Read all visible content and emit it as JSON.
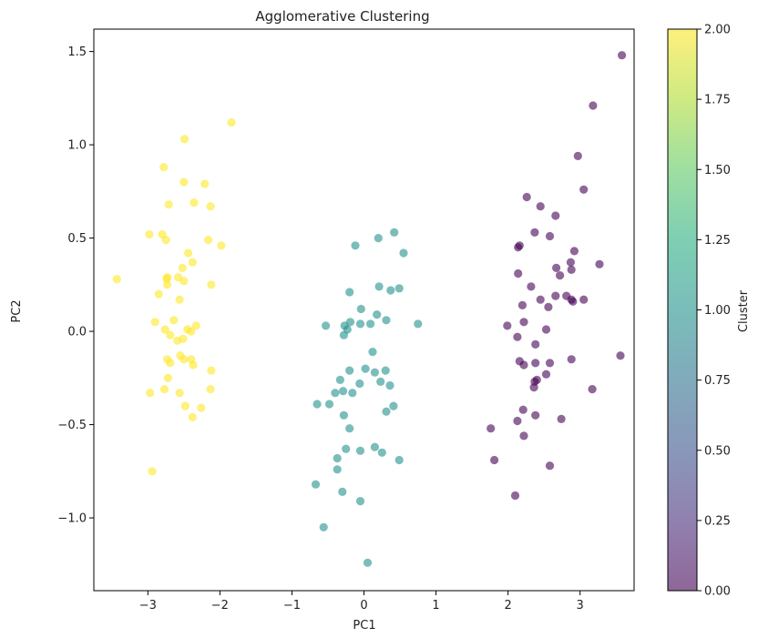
{
  "chart_data": {
    "type": "scatter",
    "title": "Agglomerative Clustering",
    "xlabel": "PC1",
    "ylabel": "PC2",
    "xlim": [
      -3.75,
      3.75
    ],
    "ylim": [
      -1.39,
      1.62
    ],
    "xticks": [
      -3,
      -2,
      -1,
      0,
      1,
      2,
      3
    ],
    "yticks": [
      -1.0,
      -0.5,
      0.0,
      0.5,
      1.0,
      1.5
    ],
    "xtick_labels": [
      "−3",
      "−2",
      "−1",
      "0",
      "1",
      "2",
      "3"
    ],
    "ytick_labels": [
      "−1.0",
      "−0.5",
      "0.0",
      "0.5",
      "1.0",
      "1.5"
    ],
    "grid": false,
    "colorbar": {
      "label": "Cluster",
      "range": [
        0.0,
        2.0
      ],
      "ticks": [
        0.0,
        0.25,
        0.5,
        0.75,
        1.0,
        1.25,
        1.5,
        1.75,
        2.0
      ],
      "tick_labels": [
        "0.00",
        "0.25",
        "0.50",
        "0.75",
        "1.00",
        "1.25",
        "1.50",
        "1.75",
        "2.00"
      ]
    },
    "colors": {
      "cluster_0": "#440154",
      "cluster_1": "#21918c",
      "cluster_2": "#fde725"
    },
    "point_alpha": 0.6,
    "series": [
      {
        "cluster": 2,
        "points": [
          [
            -1.84,
            1.12
          ],
          [
            -2.49,
            1.03
          ],
          [
            -2.78,
            0.88
          ],
          [
            -2.5,
            0.8
          ],
          [
            -2.21,
            0.79
          ],
          [
            -2.71,
            0.68
          ],
          [
            -2.36,
            0.69
          ],
          [
            -2.13,
            0.67
          ],
          [
            -2.98,
            0.52
          ],
          [
            -2.8,
            0.52
          ],
          [
            -2.75,
            0.49
          ],
          [
            -2.16,
            0.49
          ],
          [
            -1.98,
            0.46
          ],
          [
            -2.44,
            0.42
          ],
          [
            -2.38,
            0.37
          ],
          [
            -2.52,
            0.34
          ],
          [
            -3.43,
            0.28
          ],
          [
            -2.73,
            0.29
          ],
          [
            -2.74,
            0.28
          ],
          [
            -2.58,
            0.29
          ],
          [
            -2.5,
            0.27
          ],
          [
            -2.73,
            0.25
          ],
          [
            -2.12,
            0.25
          ],
          [
            -2.85,
            0.2
          ],
          [
            -2.56,
            0.17
          ],
          [
            -2.9,
            0.05
          ],
          [
            -2.64,
            0.06
          ],
          [
            -2.33,
            0.03
          ],
          [
            -2.76,
            0.01
          ],
          [
            -2.45,
            0.01
          ],
          [
            -2.4,
            0.0
          ],
          [
            -2.69,
            -0.02
          ],
          [
            -2.51,
            -0.04
          ],
          [
            -2.59,
            -0.05
          ],
          [
            -2.55,
            -0.13
          ],
          [
            -2.73,
            -0.15
          ],
          [
            -2.5,
            -0.15
          ],
          [
            -2.4,
            -0.15
          ],
          [
            -2.69,
            -0.17
          ],
          [
            -2.37,
            -0.18
          ],
          [
            -2.12,
            -0.21
          ],
          [
            -2.72,
            -0.25
          ],
          [
            -2.77,
            -0.31
          ],
          [
            -2.13,
            -0.31
          ],
          [
            -2.97,
            -0.33
          ],
          [
            -2.56,
            -0.33
          ],
          [
            -2.48,
            -0.4
          ],
          [
            -2.26,
            -0.41
          ],
          [
            -2.38,
            -0.46
          ],
          [
            -2.94,
            -0.75
          ]
        ]
      },
      {
        "cluster": 1,
        "points": [
          [
            0.42,
            0.53
          ],
          [
            0.2,
            0.5
          ],
          [
            -0.12,
            0.46
          ],
          [
            0.55,
            0.42
          ],
          [
            0.21,
            0.24
          ],
          [
            0.49,
            0.23
          ],
          [
            0.37,
            0.22
          ],
          [
            -0.2,
            0.21
          ],
          [
            0.18,
            0.09
          ],
          [
            -0.04,
            0.12
          ],
          [
            0.09,
            0.04
          ],
          [
            -0.53,
            0.03
          ],
          [
            -0.27,
            0.03
          ],
          [
            -0.19,
            0.05
          ],
          [
            -0.05,
            0.04
          ],
          [
            0.31,
            0.06
          ],
          [
            0.75,
            0.04
          ],
          [
            -0.23,
            0.01
          ],
          [
            -0.28,
            -0.02
          ],
          [
            0.12,
            -0.11
          ],
          [
            -0.2,
            -0.21
          ],
          [
            0.02,
            -0.2
          ],
          [
            0.15,
            -0.22
          ],
          [
            0.3,
            -0.21
          ],
          [
            -0.33,
            -0.26
          ],
          [
            0.23,
            -0.27
          ],
          [
            -0.06,
            -0.28
          ],
          [
            0.36,
            -0.29
          ],
          [
            -0.29,
            -0.32
          ],
          [
            -0.16,
            -0.33
          ],
          [
            -0.4,
            -0.33
          ],
          [
            -0.65,
            -0.39
          ],
          [
            -0.48,
            -0.39
          ],
          [
            0.41,
            -0.4
          ],
          [
            0.31,
            -0.43
          ],
          [
            -0.28,
            -0.45
          ],
          [
            -0.2,
            -0.52
          ],
          [
            -0.25,
            -0.63
          ],
          [
            0.15,
            -0.62
          ],
          [
            -0.05,
            -0.64
          ],
          [
            0.25,
            -0.65
          ],
          [
            -0.37,
            -0.68
          ],
          [
            0.49,
            -0.69
          ],
          [
            -0.37,
            -0.74
          ],
          [
            -0.67,
            -0.82
          ],
          [
            -0.3,
            -0.86
          ],
          [
            -0.05,
            -0.91
          ],
          [
            -0.56,
            -1.05
          ],
          [
            0.05,
            -1.24
          ]
        ]
      },
      {
        "cluster": 0,
        "points": [
          [
            3.58,
            1.48
          ],
          [
            3.18,
            1.21
          ],
          [
            2.97,
            0.94
          ],
          [
            3.05,
            0.76
          ],
          [
            2.26,
            0.72
          ],
          [
            2.45,
            0.67
          ],
          [
            2.66,
            0.62
          ],
          [
            2.37,
            0.53
          ],
          [
            2.58,
            0.51
          ],
          [
            2.14,
            0.45
          ],
          [
            2.16,
            0.46
          ],
          [
            2.92,
            0.43
          ],
          [
            2.87,
            0.37
          ],
          [
            3.27,
            0.36
          ],
          [
            2.67,
            0.34
          ],
          [
            2.88,
            0.33
          ],
          [
            2.72,
            0.3
          ],
          [
            2.14,
            0.31
          ],
          [
            2.32,
            0.24
          ],
          [
            2.81,
            0.19
          ],
          [
            2.66,
            0.19
          ],
          [
            2.45,
            0.17
          ],
          [
            2.88,
            0.17
          ],
          [
            2.9,
            0.16
          ],
          [
            3.05,
            0.17
          ],
          [
            2.2,
            0.14
          ],
          [
            2.56,
            0.13
          ],
          [
            2.22,
            0.05
          ],
          [
            1.99,
            0.03
          ],
          [
            2.53,
            0.01
          ],
          [
            2.13,
            -0.03
          ],
          [
            2.38,
            -0.07
          ],
          [
            3.56,
            -0.13
          ],
          [
            2.16,
            -0.16
          ],
          [
            2.22,
            -0.18
          ],
          [
            2.38,
            -0.17
          ],
          [
            2.58,
            -0.17
          ],
          [
            2.88,
            -0.15
          ],
          [
            2.53,
            -0.23
          ],
          [
            2.37,
            -0.27
          ],
          [
            2.4,
            -0.26
          ],
          [
            2.36,
            -0.3
          ],
          [
            3.17,
            -0.31
          ],
          [
            2.21,
            -0.42
          ],
          [
            2.38,
            -0.45
          ],
          [
            2.74,
            -0.47
          ],
          [
            2.13,
            -0.48
          ],
          [
            1.76,
            -0.52
          ],
          [
            2.22,
            -0.56
          ],
          [
            1.81,
            -0.69
          ],
          [
            2.58,
            -0.72
          ],
          [
            2.1,
            -0.88
          ]
        ]
      }
    ]
  }
}
